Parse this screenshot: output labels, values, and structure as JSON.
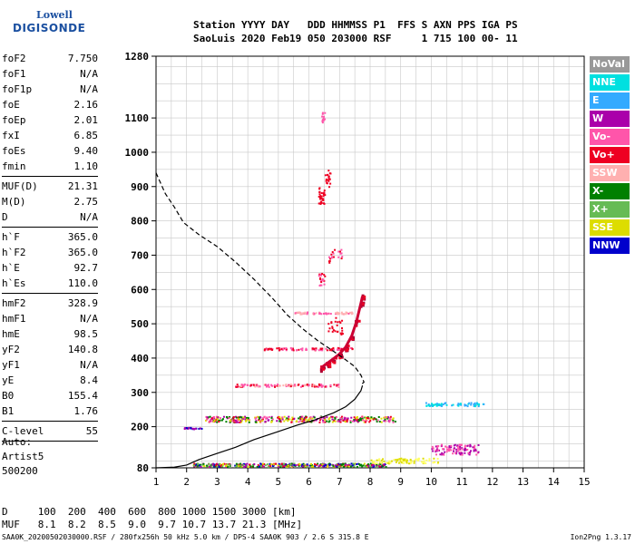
{
  "logo": {
    "line1": "Lowell",
    "line2": "DIGISONDE"
  },
  "header": {
    "line1": "Station YYYY DAY   DDD HHMMSS P1  FFS S AXN PPS IGA PS",
    "line2": "SaoLuis 2020 Feb19 050 203000 RSF     1 715 100 00- 11"
  },
  "params": [
    {
      "name": "foF2",
      "value": "7.750"
    },
    {
      "name": "foF1",
      "value": "N/A"
    },
    {
      "name": "foF1p",
      "value": "N/A"
    },
    {
      "name": "foE",
      "value": "2.16"
    },
    {
      "name": "foEp",
      "value": "2.01"
    },
    {
      "name": "fxI",
      "value": "6.85"
    },
    {
      "name": "foEs",
      "value": "9.40"
    },
    {
      "name": "fmin",
      "value": "1.10"
    },
    {
      "sep": true
    },
    {
      "name": "MUF(D)",
      "value": "21.31"
    },
    {
      "name": "M(D)",
      "value": "2.75"
    },
    {
      "name": "D",
      "value": "N/A"
    },
    {
      "sep": true
    },
    {
      "name": "h`F",
      "value": "365.0"
    },
    {
      "name": "h`F2",
      "value": "365.0"
    },
    {
      "name": "h`E",
      "value": "92.7"
    },
    {
      "name": "h`Es",
      "value": "110.0"
    },
    {
      "sep": true
    },
    {
      "name": "hmF2",
      "value": "328.9"
    },
    {
      "name": "hmF1",
      "value": "N/A"
    },
    {
      "name": "hmE",
      "value": "98.5"
    },
    {
      "name": "yF2",
      "value": "140.8"
    },
    {
      "name": "yF1",
      "value": "N/A"
    },
    {
      "name": "yE",
      "value": "8.4"
    },
    {
      "name": "B0",
      "value": "155.4"
    },
    {
      "name": "B1",
      "value": "1.76"
    },
    {
      "sep": true
    },
    {
      "name": "C-level",
      "value": "55"
    },
    {
      "sep": true
    }
  ],
  "auto": {
    "l1": "Auto:",
    "l2": "Artist5",
    "l3": "500200"
  },
  "legend": [
    {
      "label": "NoVal",
      "color": "#999999"
    },
    {
      "label": "NNE",
      "color": "#00e0e0"
    },
    {
      "label": "E",
      "color": "#33aaff"
    },
    {
      "label": "W",
      "color": "#aa00aa"
    },
    {
      "label": "Vo-",
      "color": "#ff55aa"
    },
    {
      "label": "Vo+",
      "color": "#ee0022"
    },
    {
      "label": "SSW",
      "color": "#ffb0b0"
    },
    {
      "label": "X-",
      "color": "#008000"
    },
    {
      "label": "X+",
      "color": "#66bb55"
    },
    {
      "label": "SSE",
      "color": "#dddd00"
    },
    {
      "label": "NNW",
      "color": "#0000cc"
    }
  ],
  "bottom": {
    "l1": "D     100  200  400  600  800 1000 1500 3000 [km]",
    "l2": "MUF   8.1  8.2  8.5  9.0  9.7 10.7 13.7 21.3 [MHz]"
  },
  "footer": {
    "left": "SAA0K_20200502030000.RSF / 280fx256h 50 kHz 5.0 km / DPS-4 SAA0K 903 / 2.6 S 315.8 E",
    "right": "Ion2Png 1.3.17"
  },
  "chart_data": {
    "type": "scatter",
    "xlim": [
      1,
      15
    ],
    "ylim": [
      80,
      1280
    ],
    "xticks": [
      1,
      2,
      3,
      4,
      5,
      6,
      7,
      8,
      9,
      10,
      11,
      12,
      13,
      14,
      15
    ],
    "yticks": [
      80,
      200,
      300,
      400,
      500,
      600,
      700,
      800,
      900,
      1000,
      1100,
      1280
    ],
    "grid": true,
    "series": [
      {
        "kind": "profile-dashed",
        "points": [
          [
            1,
            940
          ],
          [
            1.3,
            880
          ],
          [
            1.6,
            840
          ],
          [
            1.9,
            795
          ],
          [
            2.4,
            760
          ],
          [
            3.0,
            725
          ],
          [
            3.6,
            680
          ],
          [
            4.2,
            630
          ],
          [
            4.8,
            575
          ],
          [
            5.3,
            525
          ],
          [
            5.8,
            485
          ],
          [
            6.3,
            450
          ],
          [
            6.8,
            420
          ],
          [
            7.2,
            395
          ],
          [
            7.5,
            375
          ],
          [
            7.7,
            350
          ],
          [
            7.8,
            330
          ],
          [
            7.7,
            322
          ]
        ]
      },
      {
        "kind": "profile-solid",
        "points": [
          [
            1,
            80
          ],
          [
            1.6,
            82
          ],
          [
            2.0,
            88
          ],
          [
            2.2,
            96
          ],
          [
            2.4,
            104
          ],
          [
            3.0,
            122
          ],
          [
            3.6,
            140
          ],
          [
            4.2,
            162
          ],
          [
            5.0,
            186
          ],
          [
            5.6,
            204
          ],
          [
            6.2,
            220
          ],
          [
            6.8,
            240
          ],
          [
            7.2,
            258
          ],
          [
            7.5,
            280
          ],
          [
            7.7,
            305
          ],
          [
            7.75,
            320
          ]
        ]
      },
      {
        "kind": "trace-curve",
        "points": [
          [
            6.4,
            372
          ],
          [
            6.6,
            385
          ],
          [
            6.8,
            398
          ],
          [
            7.0,
            412
          ],
          [
            7.2,
            432
          ],
          [
            7.4,
            465
          ],
          [
            7.55,
            505
          ],
          [
            7.7,
            560
          ],
          [
            7.75,
            580
          ]
        ]
      }
    ]
  }
}
